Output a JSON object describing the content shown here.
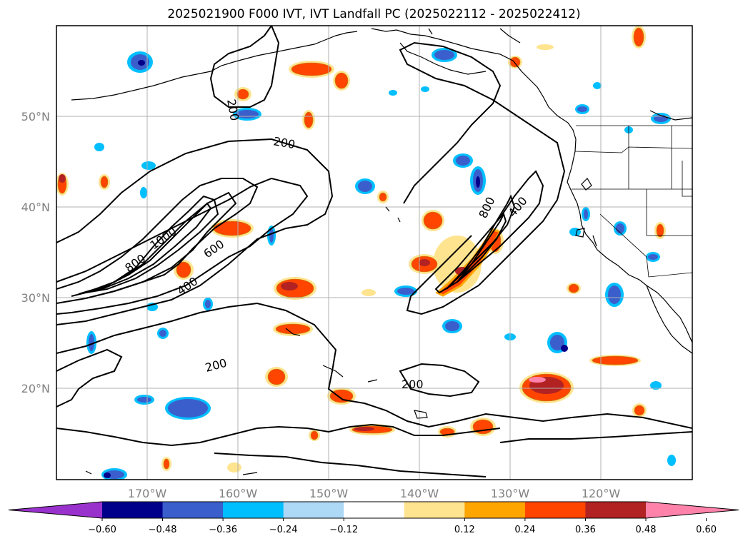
{
  "title": "2025021900 F000 IVT, IVT Landfall PC (2025022112 - 2025022412)",
  "map": {
    "lon_labels": [
      "170°W",
      "160°W",
      "150°W",
      "140°W",
      "130°W",
      "120°W"
    ],
    "lat_labels": [
      "50°N",
      "40°N",
      "30°N",
      "20°N"
    ],
    "contour_labels": [
      "200",
      "200",
      "200",
      "200",
      "400",
      "400",
      "600",
      "800",
      "800",
      "1000"
    ]
  },
  "colorbar": {
    "ticks": [
      "−0.60",
      "−0.48",
      "−0.36",
      "−0.24",
      "−0.12",
      "0.12",
      "0.24",
      "0.36",
      "0.48",
      "0.60"
    ],
    "colors": [
      "#9932cc",
      "#00008b",
      "#3a5fcd",
      "#00bfff",
      "#add8f6",
      "#ffffff",
      "#ffe48f",
      "#ffa500",
      "#ff4500",
      "#b22222",
      "#ff82ab"
    ]
  },
  "colors": {
    "contour": "#000000",
    "grid": "#b0b0b0",
    "coast": "#000000"
  }
}
